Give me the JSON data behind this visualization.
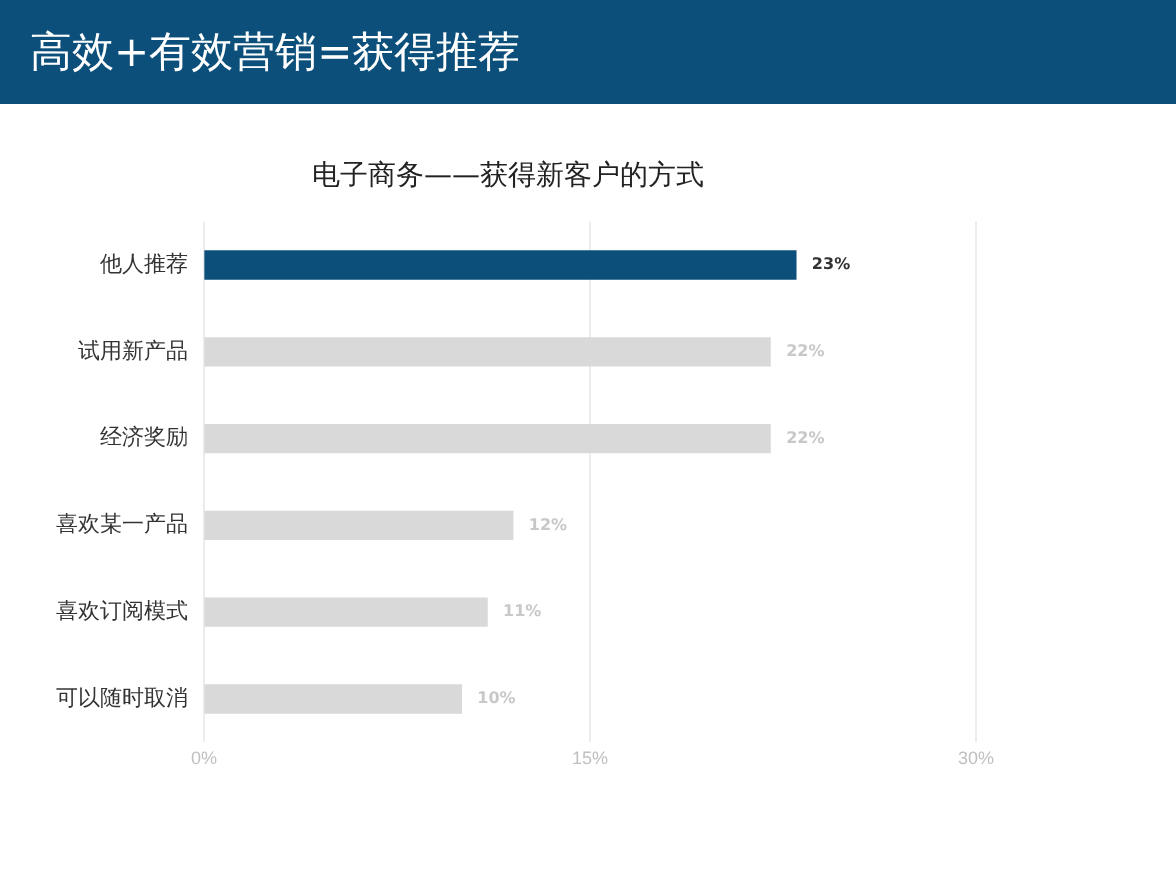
{
  "chart_data": {
    "type": "bar",
    "orientation": "horizontal",
    "title": "高效+有效营销=获得推荐",
    "subtitle": "电子商务——获得新客户的方式",
    "categories": [
      "他人推荐",
      "试用新产品",
      "经济奖励",
      "喜欢某一产品",
      "喜欢订阅模式",
      "可以随时取消"
    ],
    "values": [
      23,
      22,
      22,
      12,
      11,
      10
    ],
    "colors": [
      "#0b4f7a",
      "#d9d9d9",
      "#d9d9d9",
      "#d9d9d9",
      "#d9d9d9",
      "#d9d9d9"
    ],
    "value_labels": [
      "23%",
      "22%",
      "22%",
      "12%",
      "11%",
      "10%"
    ],
    "xlim": [
      0,
      30
    ],
    "xticks": [
      {
        "value": 0,
        "label": "0%"
      },
      {
        "value": 15,
        "label": "15%"
      },
      {
        "value": 30,
        "label": "30%"
      }
    ],
    "grid": "x",
    "legend": false
  }
}
